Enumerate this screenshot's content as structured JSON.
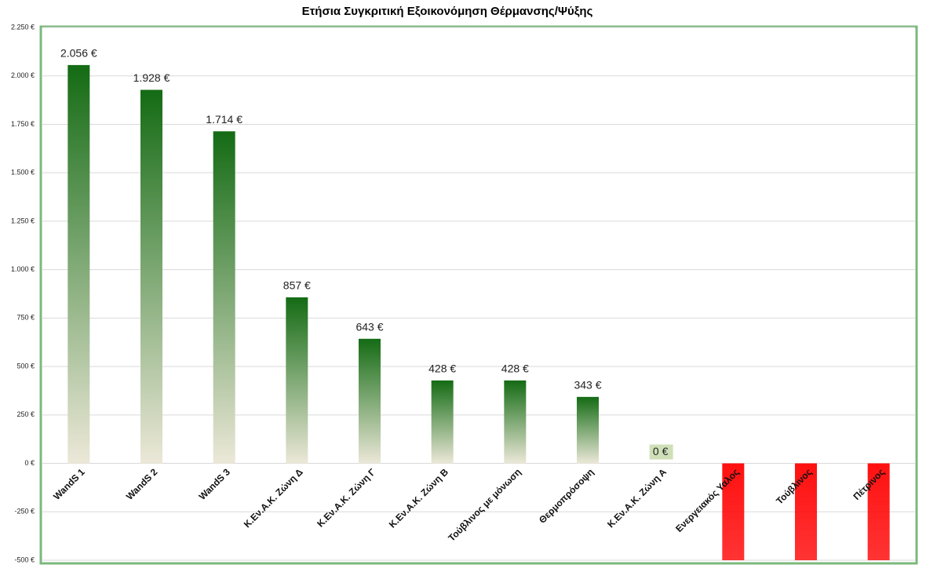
{
  "chart_data": {
    "type": "bar",
    "title": "Ετήσια  Συγκριτική Εξοικονόμηση  Θέρμανσης/Ψύξης",
    "categories": [
      "WandS 1",
      "WandS 2",
      "WandS 3",
      "Κ.Εν.Α.Κ. Ζώνη Δ",
      "Κ.Εν.Α.Κ. Ζώνη Γ",
      "Κ.Εν.Α.Κ. Ζώνη Β",
      "Τούβλινος με μόνωση",
      "Θερμοπρόσοψη",
      "Κ.Εν.Α.Κ. Ζώνη Α",
      "Ενεργειακός Υαλος",
      "Τούβλινος",
      "Πέτρινος"
    ],
    "values": [
      2056,
      1928,
      1714,
      857,
      643,
      428,
      428,
      343,
      0,
      -500,
      -500,
      -500
    ],
    "value_labels": [
      "2.056 €",
      "1.928 €",
      "1.714 €",
      "857 €",
      "643 €",
      "428 €",
      "428 €",
      "343 €",
      "0 €",
      null,
      null,
      null
    ],
    "colors": [
      "#146b14",
      "#146b14",
      "#146b14",
      "#146b14",
      "#146b14",
      "#146b14",
      "#146b14",
      "#146b14",
      "#146b14",
      "#ff1010",
      "#ff1010",
      "#ff1010"
    ],
    "ylim": [
      -500,
      2250
    ],
    "yticks": [
      {
        "value": -500,
        "label": "-500 €"
      },
      {
        "value": -250,
        "label": "-250 €"
      },
      {
        "value": 0,
        "label": "0 €"
      },
      {
        "value": 250,
        "label": "250 €"
      },
      {
        "value": 500,
        "label": "500 €"
      },
      {
        "value": 750,
        "label": "750 €"
      },
      {
        "value": 1000,
        "label": "1.000 €"
      },
      {
        "value": 1250,
        "label": "1.250 €"
      },
      {
        "value": 1500,
        "label": "1.500 €"
      },
      {
        "value": 1750,
        "label": "1.750 €"
      },
      {
        "value": 2000,
        "label": "2.000 €"
      },
      {
        "value": 2250,
        "label": "2.250 €"
      }
    ],
    "grid": true
  }
}
